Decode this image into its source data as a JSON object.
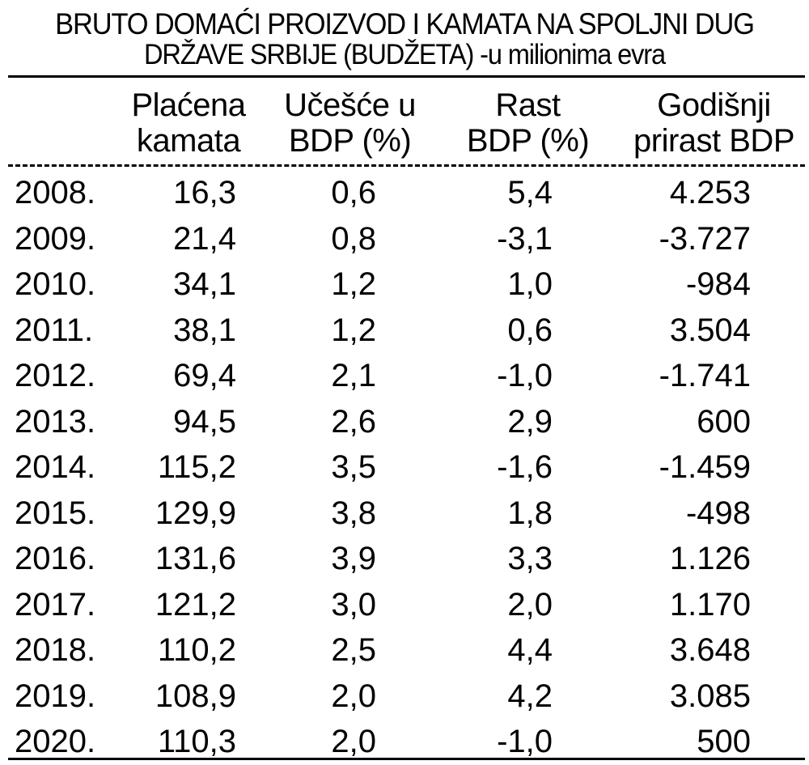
{
  "title": {
    "line1": "BRUTO DOMAĆI PROIZVOD I KAMATA NA SPOLJNI DUG",
    "line2": "DRŽAVE SRBIJE (BUDŽETA) -u milionima evra"
  },
  "columns": [
    {
      "line1": "",
      "line2": ""
    },
    {
      "line1": "Plaćena",
      "line2": "kamata"
    },
    {
      "line1": "Učešće u",
      "line2": "BDP (%)"
    },
    {
      "line1": "Rast",
      "line2": "BDP (%)"
    },
    {
      "line1": "Godišnji",
      "line2": "prirast BDP"
    }
  ],
  "rows": [
    {
      "year": "2008.",
      "interest": "16,3",
      "share": "0,6",
      "growth": "5,4",
      "increase": "4.253"
    },
    {
      "year": "2009.",
      "interest": "21,4",
      "share": "0,8",
      "growth": "-3,1",
      "increase": "-3.727"
    },
    {
      "year": "2010.",
      "interest": "34,1",
      "share": "1,2",
      "growth": "1,0",
      "increase": "-984"
    },
    {
      "year": "2011.",
      "interest": "38,1",
      "share": "1,2",
      "growth": "0,6",
      "increase": "3.504"
    },
    {
      "year": "2012.",
      "interest": "69,4",
      "share": "2,1",
      "growth": "-1,0",
      "increase": "-1.741"
    },
    {
      "year": "2013.",
      "interest": "94,5",
      "share": "2,6",
      "growth": "2,9",
      "increase": "600"
    },
    {
      "year": "2014.",
      "interest": "115,2",
      "share": "3,5",
      "growth": "-1,6",
      "increase": "-1.459"
    },
    {
      "year": "2015.",
      "interest": "129,9",
      "share": "3,8",
      "growth": "1,8",
      "increase": "-498"
    },
    {
      "year": "2016.",
      "interest": "131,6",
      "share": "3,9",
      "growth": "3,3",
      "increase": "1.126"
    },
    {
      "year": "2017.",
      "interest": "121,2",
      "share": "3,0",
      "growth": "2,0",
      "increase": "1.170"
    },
    {
      "year": "2018.",
      "interest": "110,2",
      "share": "2,5",
      "growth": "4,4",
      "increase": "3.648"
    },
    {
      "year": "2019.",
      "interest": "108,9",
      "share": "2,0",
      "growth": "4,2",
      "increase": "3.085"
    },
    {
      "year": "2020.",
      "interest": "110,3",
      "share": "2,0",
      "growth": "-1,0",
      "increase": "500"
    }
  ]
}
